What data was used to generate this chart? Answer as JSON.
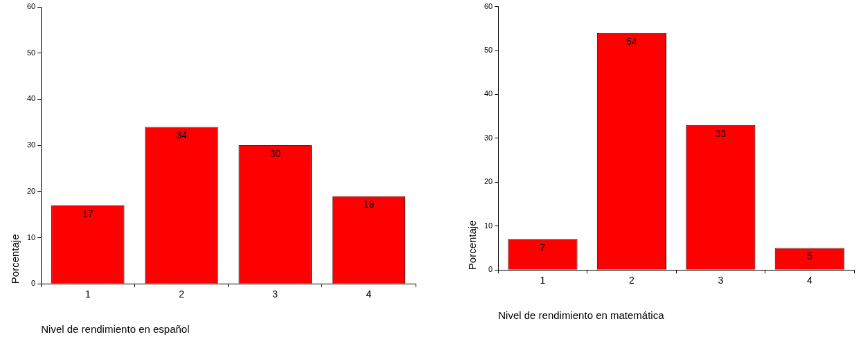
{
  "chart_data": [
    {
      "type": "bar",
      "xlabel": "Nivel de rendimiento en español",
      "ylabel": "Porcentaje",
      "categories": [
        "1",
        "2",
        "3",
        "4"
      ],
      "values": [
        17,
        34,
        30,
        19
      ],
      "color": "#ff0000",
      "ylim": [
        0,
        60
      ],
      "yticks": [
        0,
        10,
        20,
        30,
        40,
        50,
        60
      ],
      "data_labels": true
    },
    {
      "type": "bar",
      "xlabel": "Nivel de rendimiento en matemática",
      "ylabel": "Porcentaje",
      "categories": [
        "1",
        "2",
        "3",
        "4"
      ],
      "values": [
        7,
        54,
        33,
        5
      ],
      "color": "#ff0000",
      "ylim": [
        0,
        60
      ],
      "yticks": [
        0,
        10,
        20,
        30,
        40,
        50,
        60
      ],
      "data_labels": true
    }
  ]
}
